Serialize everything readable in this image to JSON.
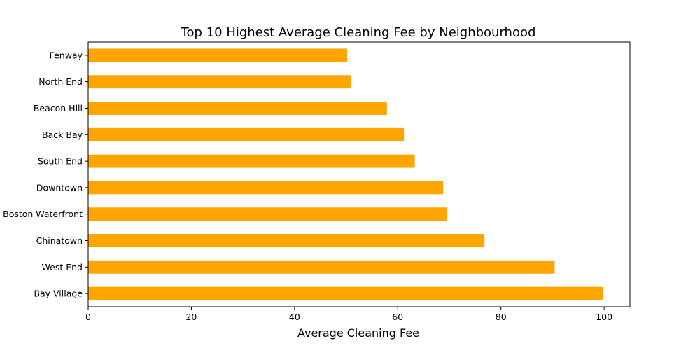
{
  "chart_data": {
    "type": "bar",
    "orientation": "horizontal",
    "title": "Top 10 Highest Average Cleaning Fee by Neighbourhood",
    "xlabel": "Average Cleaning Fee",
    "ylabel": "",
    "categories": [
      "Bay Village",
      "West End",
      "Chinatown",
      "Boston Waterfront",
      "Downtown",
      "South End",
      "Back Bay",
      "Beacon Hill",
      "North End",
      "Fenway"
    ],
    "values": [
      99.8,
      90.4,
      76.8,
      69.5,
      68.8,
      63.3,
      61.2,
      57.9,
      51.0,
      50.2
    ],
    "xlim": [
      0,
      105
    ],
    "xticks": [
      0,
      20,
      40,
      60,
      80,
      100
    ],
    "bar_color": "#FFA500",
    "grid": false,
    "legend": "none"
  }
}
